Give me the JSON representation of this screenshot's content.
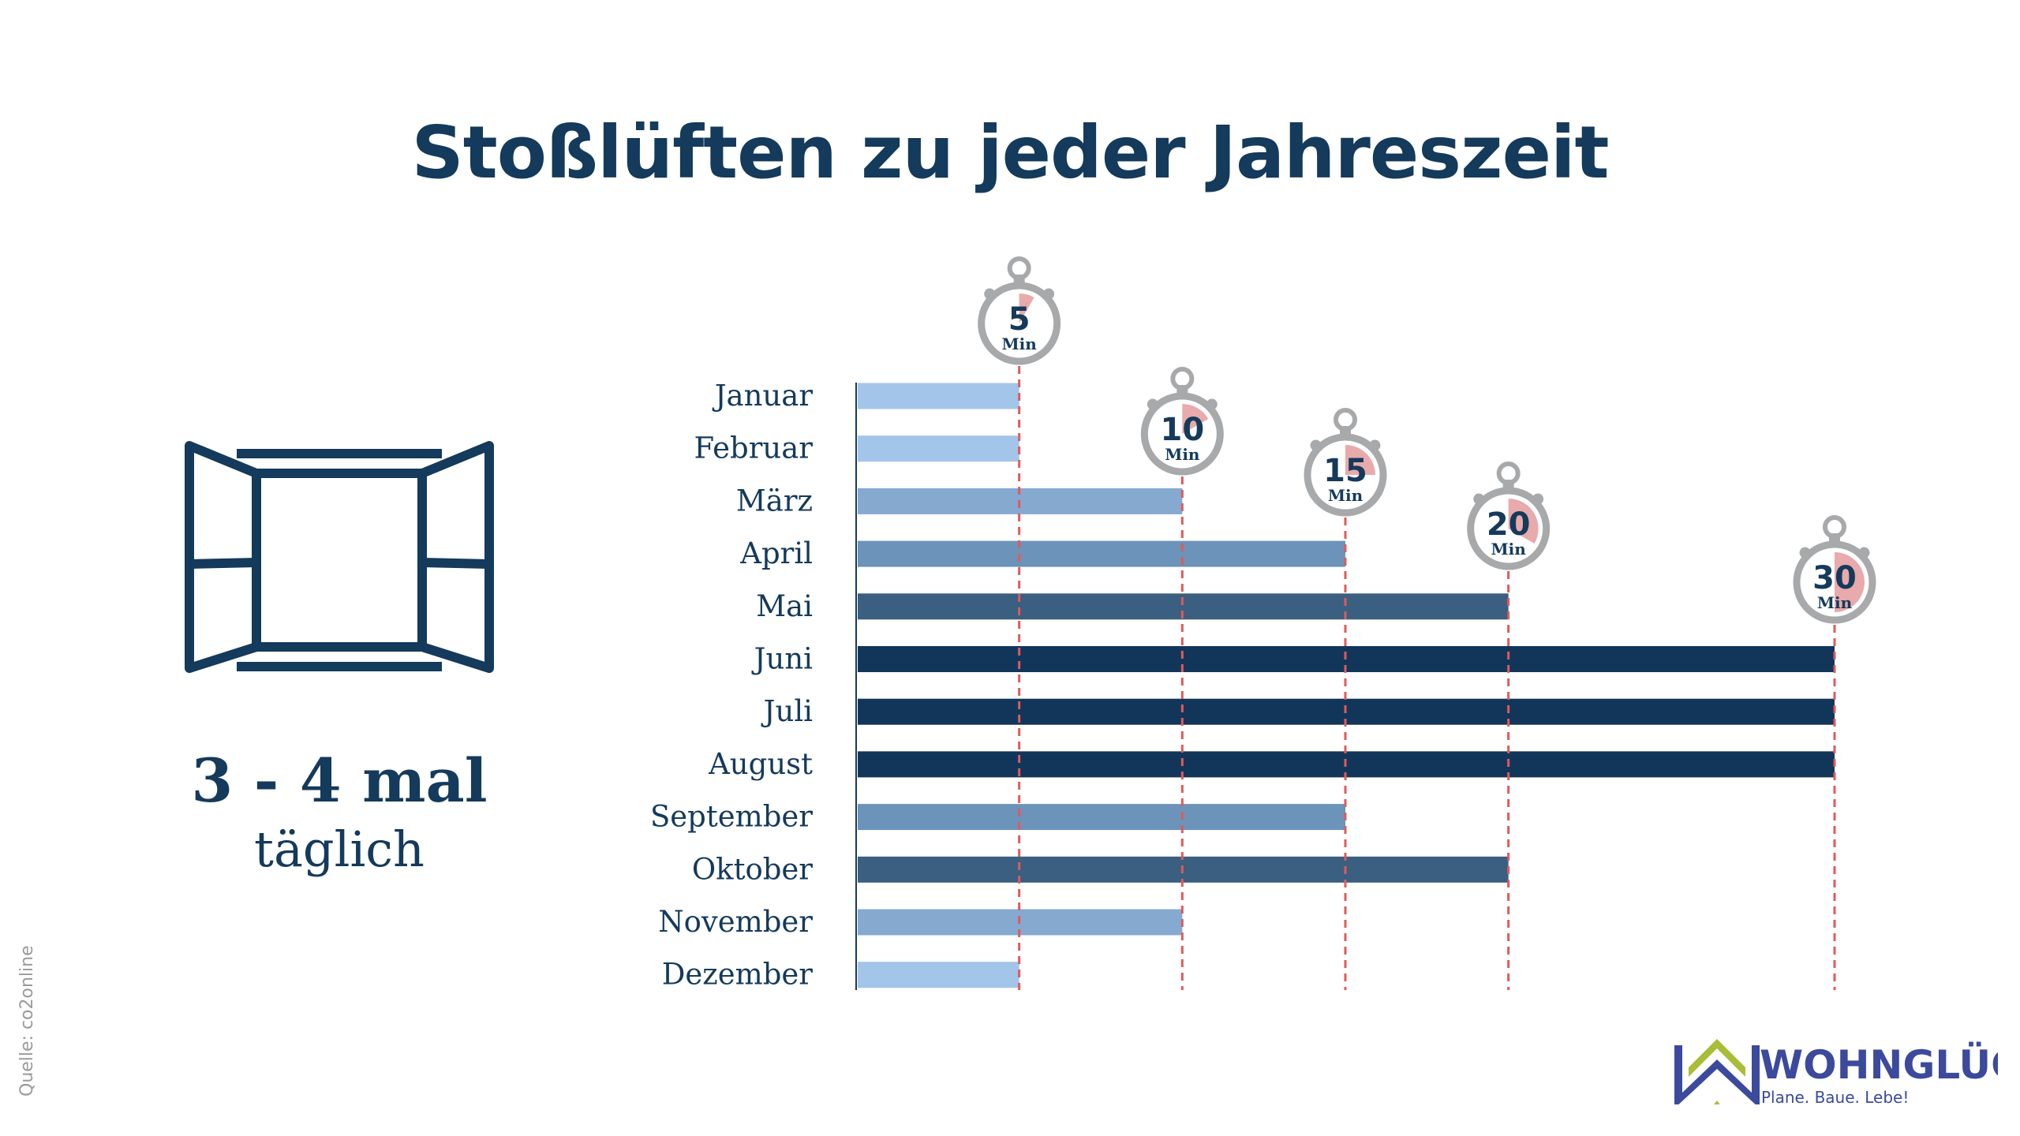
{
  "title": "Stoßlüften zu jeder Jahreszeit",
  "frequency": {
    "value": "3 - 4 mal",
    "unit": "täglich"
  },
  "source": "Quelle: co2online",
  "logo": {
    "name": "WOHNGLÜCK",
    "tagline": "Plane. Baue. Lebe!",
    "colors": {
      "primary": "#3b4a9c",
      "accent": "#a9bd38"
    }
  },
  "chart_data": {
    "type": "bar",
    "orientation": "horizontal",
    "categories": [
      "Januar",
      "Februar",
      "März",
      "April",
      "Mai",
      "Juni",
      "Juli",
      "August",
      "September",
      "Oktober",
      "November",
      "Dezember"
    ],
    "values": [
      5,
      5,
      10,
      15,
      20,
      30,
      30,
      30,
      15,
      20,
      10,
      5
    ],
    "unit": "Min",
    "markers": [
      5,
      10,
      15,
      20,
      30
    ],
    "marker_label": "Min",
    "xlim": [
      0,
      30
    ],
    "colors": {
      "5": "#a3c5e9",
      "10": "#86a9d0",
      "15": "#6c93b9",
      "20": "#3a5f80",
      "30": "#12365a",
      "marker_line": "#e05a5a",
      "stopwatch": "#a8a9ab",
      "stopwatch_fill": "#e8aaaa"
    }
  }
}
